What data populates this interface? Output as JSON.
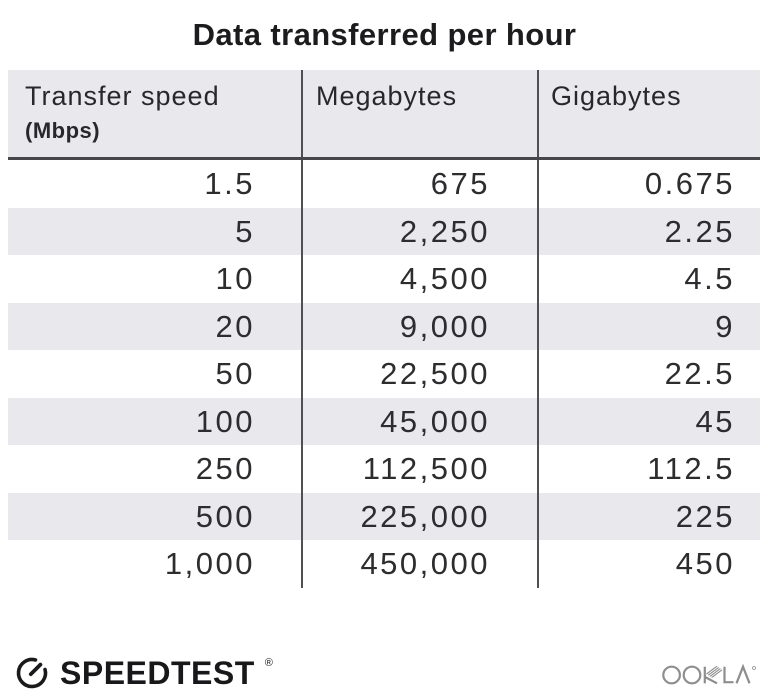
{
  "title": "Data transferred per hour",
  "table": {
    "columns": [
      {
        "label": "Transfer speed",
        "sublabel": "(Mbps)"
      },
      {
        "label": "Megabytes",
        "sublabel": ""
      },
      {
        "label": "Gigabytes",
        "sublabel": ""
      }
    ],
    "rows": [
      {
        "speed_mbps": "1.5",
        "megabytes": "675",
        "gigabytes": "0.675"
      },
      {
        "speed_mbps": "5",
        "megabytes": "2,250",
        "gigabytes": "2.25"
      },
      {
        "speed_mbps": "10",
        "megabytes": "4,500",
        "gigabytes": "4.5"
      },
      {
        "speed_mbps": "20",
        "megabytes": "9,000",
        "gigabytes": "9"
      },
      {
        "speed_mbps": "50",
        "megabytes": "22,500",
        "gigabytes": "22.5"
      },
      {
        "speed_mbps": "100",
        "megabytes": "45,000",
        "gigabytes": "45"
      },
      {
        "speed_mbps": "250",
        "megabytes": "112,500",
        "gigabytes": "112.5"
      },
      {
        "speed_mbps": "500",
        "megabytes": "225,000",
        "gigabytes": "225"
      },
      {
        "speed_mbps": "1,000",
        "megabytes": "450,000",
        "gigabytes": "450"
      }
    ]
  },
  "chart_data": {
    "type": "table",
    "title": "Data transferred per hour",
    "columns": [
      "Transfer speed (Mbps)",
      "Megabytes",
      "Gigabytes"
    ],
    "rows": [
      [
        1.5,
        675,
        0.675
      ],
      [
        5,
        2250,
        2.25
      ],
      [
        10,
        4500,
        4.5
      ],
      [
        20,
        9000,
        9
      ],
      [
        50,
        22500,
        22.5
      ],
      [
        100,
        45000,
        45
      ],
      [
        250,
        112500,
        112.5
      ],
      [
        500,
        225000,
        225
      ],
      [
        1000,
        450000,
        450
      ]
    ]
  },
  "footer": {
    "speedtest": {
      "label": "SPEEDTEST",
      "trademark": "®"
    },
    "ookla": {
      "label": "OOKLA"
    }
  },
  "colors": {
    "stripe": "#e9e9ed",
    "header_bg": "#e9e9ed",
    "divider": "#4f4f54",
    "header_rule": "#47474b",
    "text": "#2d2d30",
    "title_text": "#1c1c1e",
    "logo_dark": "#1a1a1c",
    "ookla_gray": "#8e8e90"
  }
}
